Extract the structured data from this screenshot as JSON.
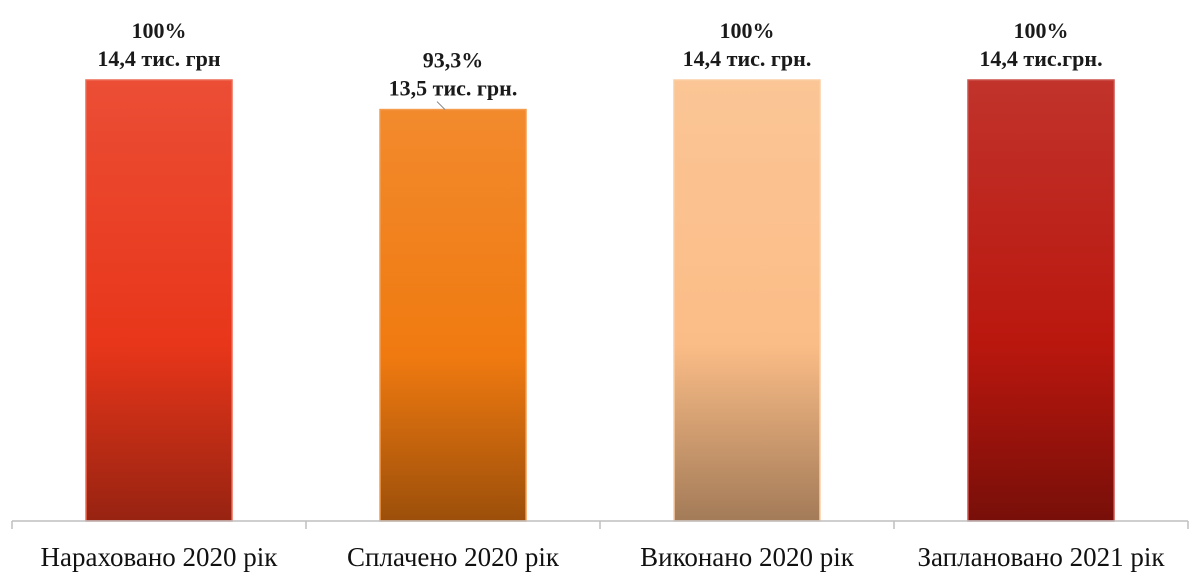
{
  "chart_data": {
    "type": "bar",
    "categories": [
      "Нараховано 2020 рік",
      "Сплачено 2020 рік",
      "Виконано 2020 рік",
      "Заплановано 2021 рік"
    ],
    "values": [
      100,
      93.3,
      100,
      100
    ],
    "value_unit": "%",
    "amounts_label": [
      "14,4 тис. грн",
      "13,5 тис. грн.",
      "14,4 тис. грн.",
      "14,4 тис.грн."
    ],
    "percent_label": [
      "100%",
      "93,3%",
      "100%",
      "100%"
    ],
    "bar_colors": [
      "#e8361a",
      "#f07a10",
      "#fbbd87",
      "#b9170e"
    ],
    "ylim": [
      0,
      100
    ],
    "grid": false,
    "legend": "none",
    "title": "",
    "xlabel": "",
    "ylabel": ""
  }
}
